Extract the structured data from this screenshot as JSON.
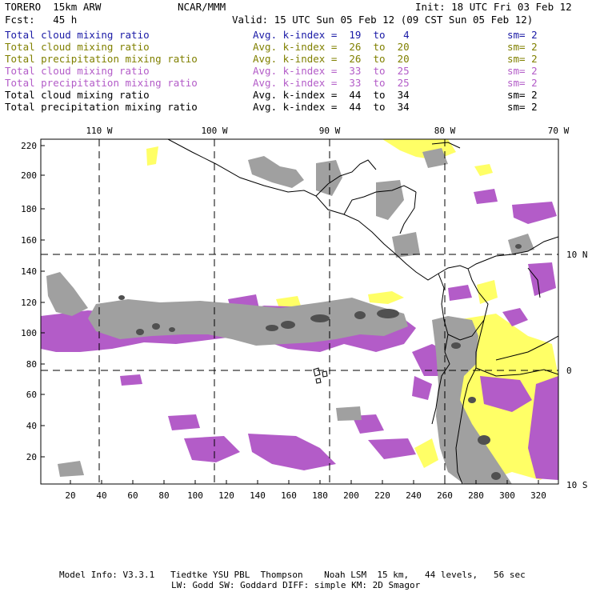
{
  "header": {
    "model": "TORERO  15km ARW",
    "org": "NCAR/MMM",
    "init": "Init: 18 UTC Fri 03 Feb 12",
    "fcst": "Fcst:   45 h",
    "valid": "Valid: 15 UTC Sun 05 Feb 12 (09 CST Sun 05 Feb 12)"
  },
  "legend": [
    {
      "field": "Total cloud mixing ratio",
      "kindex": "Avg. k-index =  19  to   4",
      "sm": "sm= 2",
      "color": "#1a1aa6"
    },
    {
      "field": "Total cloud mixing ratio",
      "kindex": "Avg. k-index =  26  to  20",
      "sm": "sm= 2",
      "color": "#808000"
    },
    {
      "field": "Total precipitation mixing ratio",
      "kindex": "Avg. k-index =  26  to  20",
      "sm": "sm= 2",
      "color": "#808000"
    },
    {
      "field": "Total cloud mixing ratio",
      "kindex": "Avg. k-index =  33  to  25",
      "sm": "sm= 2",
      "color": "#b35cc8"
    },
    {
      "field": "Total precipitation mixing ratio",
      "kindex": "Avg. k-index =  33  to  25",
      "sm": "sm= 2",
      "color": "#b35cc8"
    },
    {
      "field": "Total cloud mixing ratio",
      "kindex": "Avg. k-index =  44  to  34",
      "sm": "sm= 2",
      "color": "#000000"
    },
    {
      "field": "Total precipitation mixing ratio",
      "kindex": "Avg. k-index =  44  to  34",
      "sm": "sm= 2",
      "color": "#000000"
    }
  ],
  "map": {
    "lon_labels": [
      "110 W",
      "100 W",
      "90 W",
      "80 W",
      "70 W"
    ],
    "lat_labels": [
      "10 N",
      "0",
      "10 S"
    ],
    "y_ticks": [
      "220",
      "200",
      "180",
      "160",
      "140",
      "120",
      "100",
      "80",
      "60",
      "40",
      "20"
    ],
    "x_ticks": [
      "20",
      "40",
      "60",
      "80",
      "100",
      "120",
      "140",
      "160",
      "180",
      "200",
      "220",
      "240",
      "260",
      "280",
      "300",
      "320"
    ],
    "colors": {
      "gray": "#a0a0a0",
      "dark": "#505050",
      "yellow": "#ffff66",
      "purple": "#b35cc8"
    }
  },
  "footer": {
    "line1": "Model Info: V3.3.1   Tiedtke YSU PBL  Thompson    Noah LSM  15 km,   44 levels,   56 sec",
    "line2": "LW: Godd SW: Goddard DIFF: simple KM: 2D Smagor"
  }
}
